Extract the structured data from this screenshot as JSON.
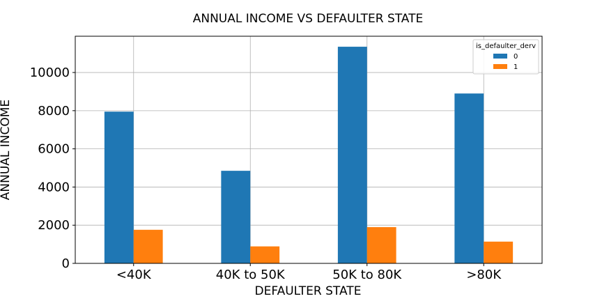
{
  "chart_data": {
    "type": "bar",
    "title": "ANNUAL INCOME VS DEFAULTER STATE",
    "xlabel": "DEFAULTER STATE",
    "ylabel": "ANNUAL INCOME",
    "categories": [
      "<40K",
      "40K to 50K",
      "50K to 80K",
      ">80K"
    ],
    "series": [
      {
        "name": "0",
        "color": "#1f77b4",
        "values": [
          7950,
          4850,
          11350,
          8900
        ]
      },
      {
        "name": "1",
        "color": "#ff7f0e",
        "values": [
          1760,
          890,
          1900,
          1140
        ]
      }
    ],
    "ylim": [
      0,
      11900
    ],
    "yticks": [
      0,
      2000,
      4000,
      6000,
      8000,
      10000
    ],
    "grid": true,
    "legend": {
      "title": "is_defaulter_derv",
      "placement": "top-right"
    }
  }
}
